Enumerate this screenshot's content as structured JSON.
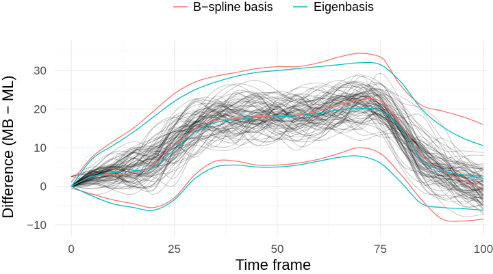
{
  "chart_data": {
    "type": "line",
    "xlabel": "Time frame",
    "ylabel": "Difference (MB − ML)",
    "xlim": [
      -4,
      101
    ],
    "ylim": [
      -13,
      38
    ],
    "x_ticks": [
      0,
      25,
      50,
      75,
      100
    ],
    "y_ticks": [
      -10,
      0,
      10,
      20,
      30
    ],
    "grid": true,
    "legend_position": "top",
    "legend": [
      {
        "name": "B−spline basis",
        "color": "#f8766d"
      },
      {
        "name": "Eigenbasis",
        "color": "#00bfc4"
      }
    ],
    "sample_curves": {
      "color": "#000000",
      "count": 90,
      "mean_curve": {
        "x": [
          0,
          5,
          10,
          15,
          20,
          25,
          30,
          35,
          40,
          45,
          50,
          55,
          60,
          65,
          70,
          75,
          80,
          85,
          90,
          95,
          100
        ],
        "y": [
          0,
          2.5,
          3.5,
          4.2,
          6,
          11,
          15,
          17,
          17.5,
          18,
          18,
          18.3,
          19,
          20.5,
          21.5,
          21,
          15.5,
          8,
          4,
          2,
          0
        ]
      }
    },
    "series": [
      {
        "name": "B−spline basis",
        "band": "upper",
        "color": "#f8766d",
        "x": [
          0,
          5,
          10,
          15,
          20,
          25,
          30,
          35,
          40,
          45,
          50,
          55,
          60,
          65,
          70,
          75,
          77,
          80,
          85,
          90,
          95,
          100
        ],
        "y": [
          1,
          7.5,
          11.5,
          15,
          19.5,
          24,
          27,
          28.5,
          29.5,
          30.5,
          31,
          31,
          32,
          33.5,
          34.5,
          33.5,
          31,
          26,
          21,
          19.5,
          18,
          16
        ]
      },
      {
        "name": "B−spline basis",
        "band": "mean",
        "color": "#f8766d",
        "x": [
          0,
          5,
          10,
          15,
          20,
          25,
          30,
          35,
          40,
          45,
          50,
          55,
          60,
          65,
          70,
          75,
          80,
          85,
          90,
          95,
          100
        ],
        "y": [
          0,
          2.5,
          3,
          3.5,
          5.5,
          10.5,
          14.5,
          17,
          17.5,
          18,
          18.2,
          18.5,
          19.5,
          21,
          22.5,
          22,
          16,
          8,
          4,
          1.5,
          -0.5
        ]
      },
      {
        "name": "B−spline basis",
        "band": "lower",
        "color": "#f8766d",
        "x": [
          0,
          5,
          10,
          15,
          20,
          25,
          30,
          35,
          40,
          45,
          50,
          55,
          60,
          65,
          70,
          75,
          80,
          85,
          90,
          95,
          100
        ],
        "y": [
          -0.5,
          -2,
          -3.5,
          -4.5,
          -5.5,
          -3,
          3,
          6.5,
          6.5,
          5.5,
          5.5,
          6,
          7,
          8.5,
          10,
          8.5,
          3,
          -3.5,
          -8.5,
          -9,
          -8.5
        ]
      },
      {
        "name": "Eigenbasis",
        "band": "upper",
        "color": "#00bfc4",
        "x": [
          0,
          5,
          10,
          15,
          20,
          25,
          30,
          35,
          40,
          45,
          50,
          55,
          60,
          65,
          70,
          75,
          80,
          85,
          90,
          95,
          100
        ],
        "y": [
          0,
          7,
          10.5,
          14,
          18,
          22,
          25,
          27,
          28.5,
          29.5,
          30,
          30.5,
          31,
          31.5,
          32,
          31.5,
          27,
          20,
          15.5,
          12.5,
          10.5
        ]
      },
      {
        "name": "Eigenbasis",
        "band": "mean",
        "color": "#00bfc4",
        "x": [
          0,
          5,
          10,
          15,
          20,
          25,
          30,
          35,
          40,
          45,
          50,
          55,
          60,
          65,
          70,
          75,
          80,
          85,
          90,
          95,
          100
        ],
        "y": [
          0,
          2.5,
          3.5,
          4,
          5,
          9.5,
          14,
          16.5,
          17.3,
          17.8,
          18,
          18.3,
          19,
          19.8,
          20.2,
          19.5,
          15,
          7,
          4,
          3,
          2
        ]
      },
      {
        "name": "Eigenbasis",
        "band": "lower",
        "color": "#00bfc4",
        "x": [
          0,
          5,
          10,
          15,
          20,
          25,
          30,
          35,
          40,
          45,
          50,
          55,
          60,
          65,
          70,
          75,
          80,
          85,
          90,
          95,
          100
        ],
        "y": [
          0,
          -2.5,
          -4.5,
          -5.5,
          -6.2,
          -3.5,
          2,
          5,
          5.5,
          5,
          5,
          5.5,
          6.5,
          7.5,
          7.8,
          6,
          1,
          -4.5,
          -5.5,
          -5.8,
          -6.2
        ]
      }
    ]
  }
}
